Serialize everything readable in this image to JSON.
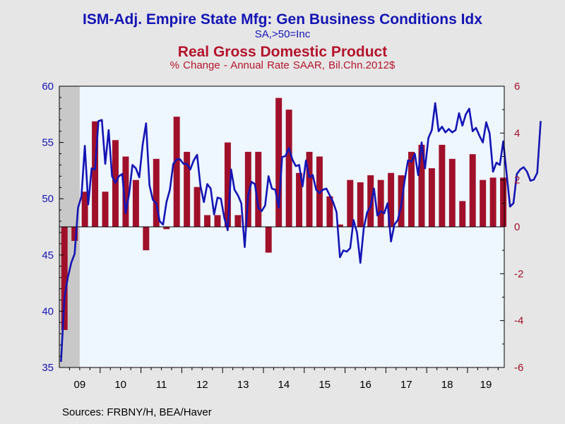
{
  "chart_data": {
    "type": "bar",
    "title_line_series": "ISM-Adj. Empire State Mfg: Gen Business Conditions Idx",
    "subtitle_line_series": "SA,>50=Inc",
    "title_bar_series": "Real Gross Domestic Product",
    "subtitle_bar_series": "% Change - Annual Rate     SAAR, Bil.Chn.2012$",
    "sources": "Sources:  FRBNY/H, BEA/Haver",
    "left_axis": {
      "ylim": [
        35,
        60
      ],
      "ticks": [
        "60",
        "55",
        "50",
        "45",
        "40",
        "35"
      ]
    },
    "right_axis": {
      "ylim": [
        -6,
        6
      ],
      "ticks": [
        "6",
        "4",
        "2",
        "0",
        "-2",
        "-4",
        "-6"
      ]
    },
    "x_labels": [
      "09",
      "10",
      "11",
      "12",
      "13",
      "14",
      "15",
      "16",
      "17",
      "18",
      "19"
    ],
    "recession_shading": {
      "from": "2009-01",
      "to": "2009-06"
    },
    "colors": {
      "line": "#1414B4",
      "bar": "#A0102A",
      "plot_bg": "#EEF6FF",
      "recession": "#C8C8C8"
    },
    "series": [
      {
        "name": "Real Gross Domestic Product",
        "kind": "bar",
        "axis": "right",
        "x": [
          "2009Q1",
          "2009Q2",
          "2009Q3",
          "2009Q4",
          "2010Q1",
          "2010Q2",
          "2010Q3",
          "2010Q4",
          "2011Q1",
          "2011Q2",
          "2011Q3",
          "2011Q4",
          "2012Q1",
          "2012Q2",
          "2012Q3",
          "2012Q4",
          "2013Q1",
          "2013Q2",
          "2013Q3",
          "2013Q4",
          "2014Q1",
          "2014Q2",
          "2014Q3",
          "2014Q4",
          "2015Q1",
          "2015Q2",
          "2015Q3",
          "2015Q4",
          "2016Q1",
          "2016Q2",
          "2016Q3",
          "2016Q4",
          "2017Q1",
          "2017Q2",
          "2017Q3",
          "2017Q4",
          "2018Q1",
          "2018Q2",
          "2018Q3",
          "2018Q4",
          "2019Q1",
          "2019Q2",
          "2019Q3",
          "2019Q4"
        ],
        "values": [
          -4.4,
          -0.6,
          1.5,
          4.5,
          1.5,
          3.7,
          3.0,
          2.0,
          -1.0,
          2.9,
          -0.1,
          4.7,
          3.2,
          1.7,
          0.5,
          0.5,
          3.6,
          0.5,
          3.2,
          3.2,
          -1.1,
          5.5,
          5.0,
          2.3,
          3.2,
          3.0,
          1.3,
          0.1,
          2.0,
          1.9,
          2.2,
          2.0,
          2.3,
          2.2,
          3.2,
          3.5,
          2.5,
          3.5,
          2.9,
          1.1,
          3.1,
          2.0,
          2.1,
          2.1
        ]
      },
      {
        "name": "ISM-Adj. Empire State Mfg: Gen Business Conditions Idx",
        "kind": "line",
        "axis": "left",
        "x_start": "2009-01",
        "values": [
          35.5,
          41.2,
          43.0,
          44.3,
          45.1,
          49.2,
          50.2,
          54.7,
          49.5,
          52.7,
          52.6,
          56.9,
          57.0,
          53.1,
          56.1,
          52.0,
          51.4,
          52.0,
          52.2,
          48.7,
          50.4,
          53.0,
          52.7,
          51.9,
          54.8,
          56.7,
          51.2,
          49.9,
          49.6,
          48.0,
          47.7,
          49.7,
          50.8,
          53.1,
          53.5,
          53.5,
          53.1,
          53.1,
          52.6,
          53.4,
          53.9,
          51.1,
          49.7,
          51.3,
          50.9,
          48.6,
          50.1,
          50.0,
          48.3,
          47.2,
          52.6,
          50.8,
          50.3,
          49.6,
          45.7,
          50.3,
          51.5,
          51.3,
          49.2,
          48.9,
          49.4,
          52.0,
          50.9,
          50.8,
          49.2,
          53.7,
          53.8,
          54.5,
          53.5,
          52.9,
          53.0,
          51.1,
          53.4,
          51.9,
          52.1,
          50.8,
          50.5,
          50.8,
          50.9,
          50.3,
          49.7,
          48.8,
          44.8,
          45.4,
          45.3,
          45.6,
          48.1,
          47.0,
          44.3,
          47.4,
          48.8,
          49.3,
          50.9,
          48.5,
          48.9,
          48.7,
          49.6,
          46.2,
          47.7,
          48.1,
          49.4,
          51.6,
          53.4,
          53.3,
          54.0,
          52.1,
          55.0,
          52.7,
          55.4,
          56.1,
          58.5,
          56.0,
          56.4,
          55.9,
          56.2,
          55.9,
          56.1,
          57.6,
          56.5,
          57.5,
          58.0,
          56.0,
          56.3,
          55.6,
          55.0,
          56.8,
          55.8,
          52.4,
          53.2,
          53.0,
          55.1,
          52.2,
          49.3,
          49.6,
          52.2,
          52.6,
          52.8,
          52.4,
          51.6,
          51.7,
          52.3,
          56.9
        ]
      }
    ]
  }
}
